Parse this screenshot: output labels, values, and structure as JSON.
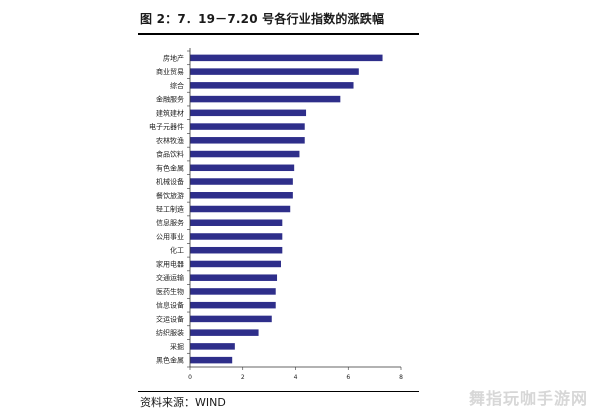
{
  "title": "图 2：7．19－7.20 号各行业指数的涨跌幅",
  "source": "资料来源：WIND",
  "watermark": "舞指玩咖手游网",
  "colors": {
    "bar": "#2e2e8a",
    "axis": "#333333",
    "rule": "#000000"
  },
  "chart_data": {
    "type": "bar",
    "orientation": "horizontal",
    "categories": [
      "房地产",
      "商业贸易",
      "综合",
      "金融服务",
      "建筑建材",
      "电子元器件",
      "农林牧渔",
      "食品饮料",
      "有色金属",
      "机械设备",
      "餐饮旅游",
      "轻工制造",
      "信息服务",
      "公用事业",
      "化工",
      "家用电器",
      "交通运输",
      "医药生物",
      "信息设备",
      "交运设备",
      "纺织服装",
      "采掘",
      "黑色金属"
    ],
    "values": [
      7.3,
      6.4,
      6.2,
      5.7,
      4.4,
      4.35,
      4.35,
      4.15,
      3.95,
      3.9,
      3.9,
      3.8,
      3.5,
      3.5,
      3.5,
      3.45,
      3.3,
      3.25,
      3.25,
      3.1,
      2.6,
      1.7,
      1.6
    ],
    "xlim": [
      0,
      8
    ],
    "xticks": [
      0,
      2,
      4,
      6,
      8
    ],
    "title": "",
    "xlabel": "",
    "ylabel": "",
    "grid": false,
    "legend": "none"
  }
}
